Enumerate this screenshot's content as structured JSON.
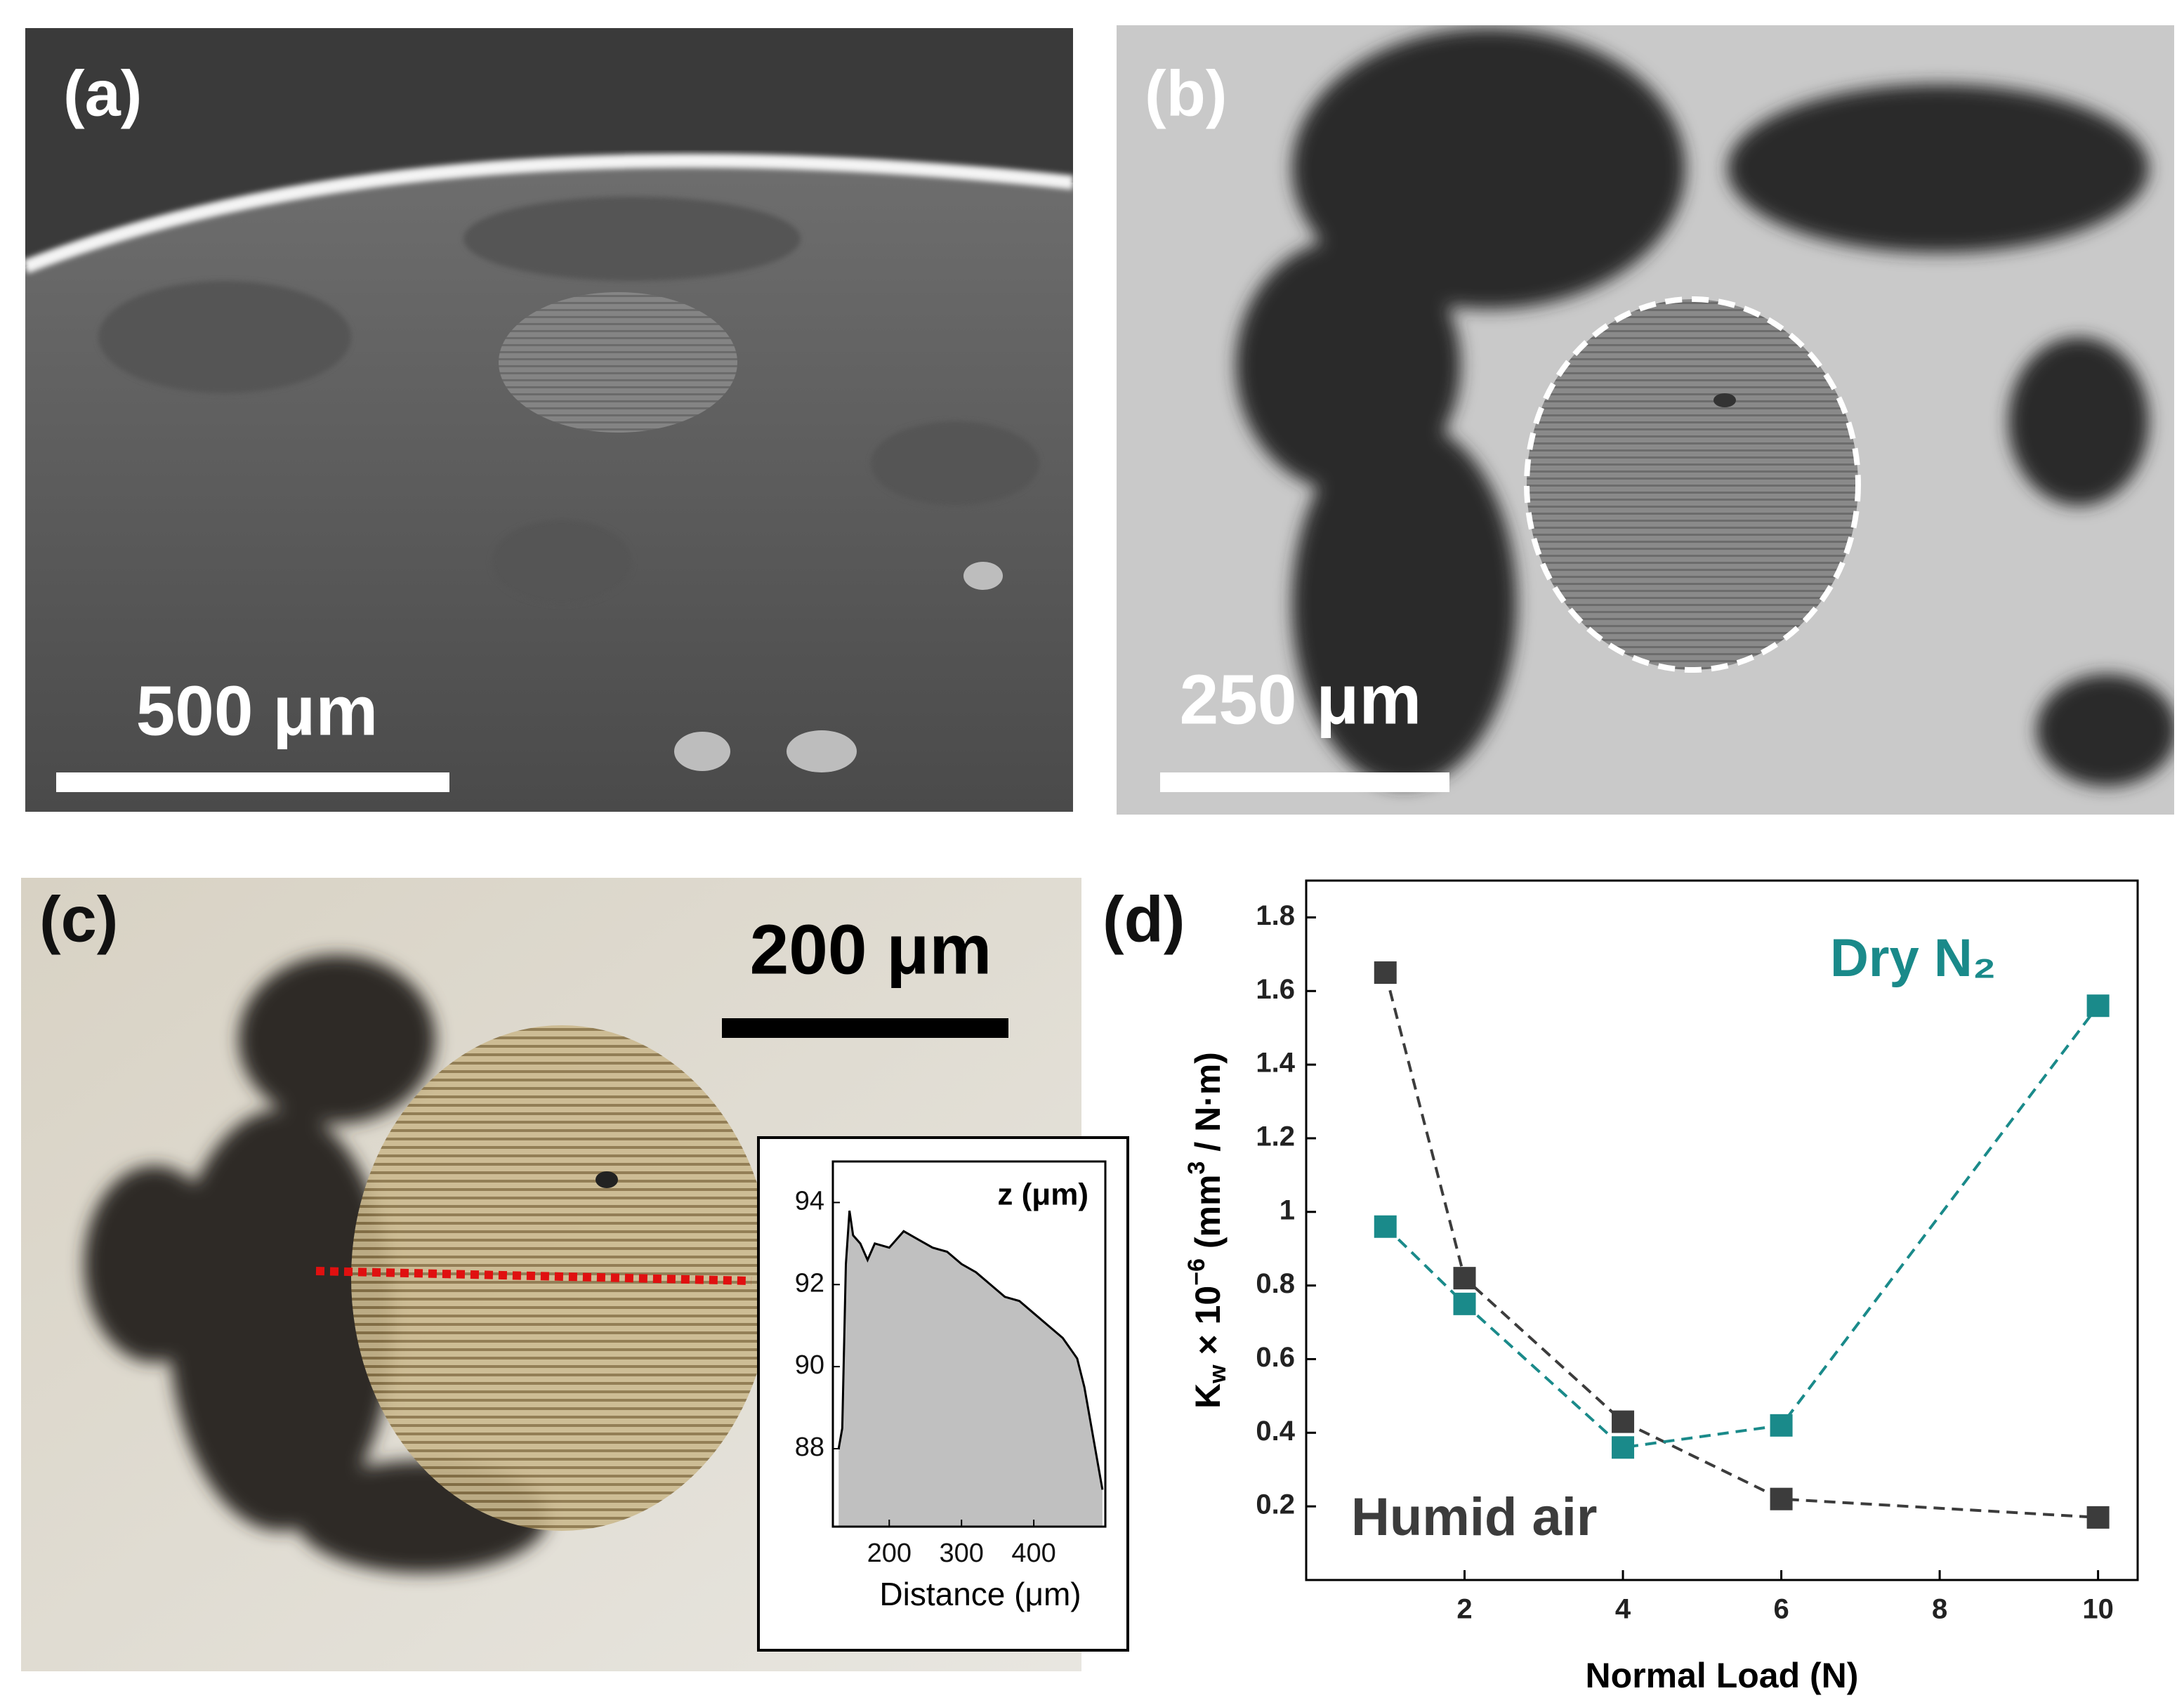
{
  "panels": [
    {
      "label": "(a)",
      "scale_bar": "500 μm"
    },
    {
      "label": "(b)",
      "scale_bar": "250 μm"
    },
    {
      "label": "(c)",
      "scale_bar": "200 μm"
    },
    {
      "label": "(d)"
    }
  ],
  "chart_data": [
    {
      "type": "area",
      "annotation": "z (μm)",
      "xlabel": "Distance (μm)",
      "x": [
        130,
        135,
        140,
        145,
        150,
        160,
        170,
        180,
        200,
        220,
        240,
        260,
        280,
        300,
        320,
        340,
        360,
        380,
        400,
        420,
        440,
        460,
        470,
        480,
        490,
        495
      ],
      "values": [
        88.0,
        88.5,
        92.5,
        93.8,
        93.2,
        93.0,
        92.6,
        93.0,
        92.9,
        93.3,
        93.1,
        92.9,
        92.8,
        92.5,
        92.3,
        92.0,
        91.7,
        91.6,
        91.3,
        91.0,
        90.7,
        90.2,
        89.5,
        88.5,
        87.5,
        87.0
      ],
      "color": "#c0c0c0",
      "xlim": [
        122,
        499
      ],
      "ylim": [
        86.1,
        95
      ],
      "xticks": [
        200,
        300,
        400
      ],
      "yticks": [
        88,
        90,
        92,
        94
      ]
    },
    {
      "type": "line",
      "xlabel": "Normal Load (N)",
      "ylabel": [
        "K",
        "w",
        " × 10",
        "−6",
        " (mm",
        "3",
        " / N·m)"
      ],
      "x": [
        1,
        2,
        4,
        6,
        10
      ],
      "series": [
        {
          "name": "Humid air",
          "color": "#3c3c3c",
          "values": [
            1.65,
            0.82,
            0.43,
            0.22,
            0.17
          ]
        },
        {
          "name": "Dry N₂",
          "color": "#1a8a8a",
          "values": [
            0.96,
            0.75,
            0.36,
            0.42,
            1.56
          ]
        }
      ],
      "xlim": [
        0,
        10.5
      ],
      "ylim": [
        0,
        1.9
      ],
      "xticks": [
        2,
        4,
        6,
        8,
        10
      ],
      "yticks": [
        0.2,
        0.4,
        0.6,
        0.8,
        1.0,
        1.2,
        1.4,
        1.6,
        1.8
      ]
    }
  ]
}
